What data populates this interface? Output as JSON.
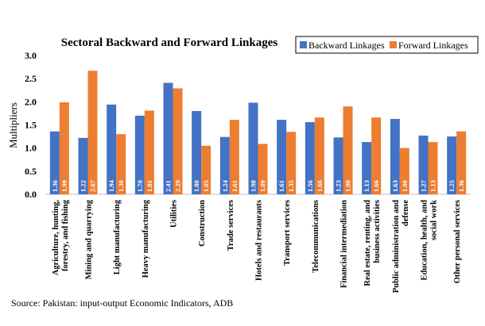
{
  "chart_data": {
    "type": "bar",
    "title": "Sectoral Backward and Forward Linkages",
    "ylabel": "Multipliers",
    "xlabel": "",
    "ylim": [
      0,
      3.0
    ],
    "yticks": [
      "0.0",
      "0.5",
      "1.0",
      "1.5",
      "2.0",
      "2.5",
      "3.0"
    ],
    "legend_position": "top-right",
    "categories": [
      "Agriculture, hunting, forestry, and fishing",
      "Mining and quarrying",
      "Light manufacturing",
      "Heavy manufacturing",
      "Utilities",
      "Construction",
      "Trade services",
      "Hotels and restaurants",
      "Transport services",
      "Telecommunications",
      "Financial intermediation",
      "Real estate, renting, and business activities",
      "Public administration and defense",
      "Education, health, and social work",
      "Other personal services"
    ],
    "series": [
      {
        "name": "Backward Linkages",
        "color": "#4472C4",
        "values": [
          1.36,
          1.22,
          1.94,
          1.7,
          2.41,
          1.8,
          1.24,
          1.98,
          1.61,
          1.56,
          1.23,
          1.13,
          1.63,
          1.27,
          1.25
        ],
        "labels": [
          "1.36",
          "1.22",
          "1.94",
          "1.70",
          "2.41",
          "1.80",
          "1.24",
          "1.98",
          "1.61",
          "1.56",
          "1.23",
          "1.13",
          "1.63",
          "1.27",
          "1.25"
        ]
      },
      {
        "name": "Forward Linkages",
        "color": "#ED7D31",
        "values": [
          1.99,
          2.67,
          1.3,
          1.81,
          2.29,
          1.05,
          1.61,
          1.09,
          1.35,
          1.66,
          1.9,
          1.66,
          1.0,
          1.13,
          1.36
        ],
        "labels": [
          "1.99",
          "2.67",
          "1.30",
          "1.81",
          "2.29",
          "1.05",
          "1.61",
          "1.09",
          "1.35",
          "1.66",
          "1.90",
          "1.66",
          "1.00",
          "1.13",
          "1.36"
        ]
      }
    ],
    "category_lines": [
      [
        "Agriculture, hunting,",
        "forestry, and fishing"
      ],
      [
        "Mining and quarrying"
      ],
      [
        "Light manufacturing"
      ],
      [
        "Heavy manufacturing"
      ],
      [
        "Utilities"
      ],
      [
        "Construction"
      ],
      [
        "Trade services"
      ],
      [
        "Hotels and restaurants"
      ],
      [
        "Transport services"
      ],
      [
        "Telecommunications"
      ],
      [
        "Financial intermediation"
      ],
      [
        "Real estate, renting, and",
        "business activities"
      ],
      [
        "Public administration and",
        "defense"
      ],
      [
        "Education, health, and",
        "social work"
      ],
      [
        "Other personal services"
      ]
    ]
  },
  "source": "Source: Pakistan: input-output Economic Indicators, ADB"
}
